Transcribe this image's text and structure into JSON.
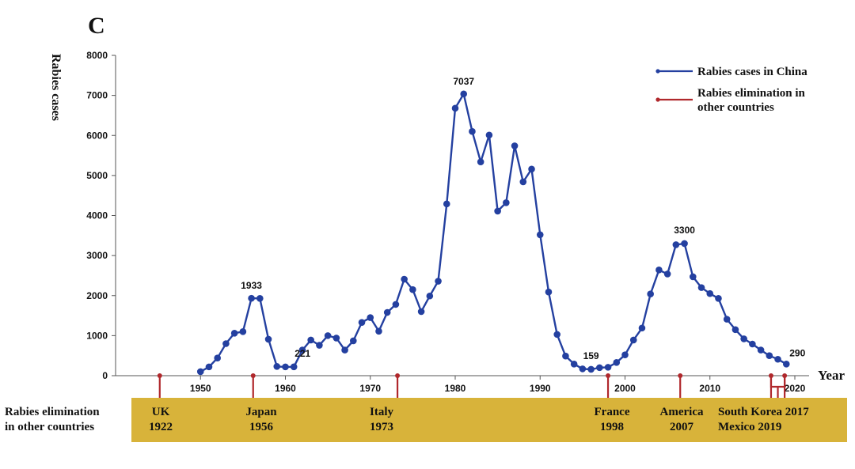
{
  "panel_label": "C",
  "colors": {
    "series": "#2440a0",
    "elimination": "#b0282c",
    "band": "#d8b33a"
  },
  "chart_data": {
    "type": "line",
    "title": "",
    "xlabel": "Year",
    "ylabel": "Rabies cases",
    "xlim": [
      1940,
      2020
    ],
    "ylim": [
      0,
      8000
    ],
    "x_ticks": [
      1950,
      1960,
      1970,
      1980,
      1990,
      2000,
      2010,
      2020
    ],
    "y_ticks": [
      0,
      1000,
      2000,
      3000,
      4000,
      5000,
      6000,
      7000,
      8000
    ],
    "legend": [
      "Rabies cases in China",
      "Rabies elimination in other countries"
    ],
    "series": [
      {
        "name": "Rabies cases in China",
        "x": [
          1950,
          1951,
          1952,
          1953,
          1954,
          1955,
          1956,
          1957,
          1958,
          1959,
          1960,
          1961,
          1962,
          1963,
          1964,
          1965,
          1966,
          1967,
          1968,
          1969,
          1970,
          1971,
          1972,
          1973,
          1974,
          1975,
          1976,
          1977,
          1978,
          1979,
          1980,
          1981,
          1982,
          1983,
          1984,
          1985,
          1986,
          1987,
          1988,
          1989,
          1990,
          1991,
          1992,
          1993,
          1994,
          1995,
          1996,
          1997,
          1998,
          1999,
          2000,
          2001,
          2002,
          2003,
          2004,
          2005,
          2006,
          2007,
          2008,
          2009,
          2010,
          2011,
          2012,
          2013,
          2014,
          2015,
          2016,
          2017,
          2018,
          2019
        ],
        "values": [
          100,
          220,
          440,
          800,
          1060,
          1100,
          1933,
          1930,
          910,
          230,
          220,
          221,
          640,
          890,
          760,
          1000,
          940,
          640,
          870,
          1330,
          1450,
          1110,
          1580,
          1780,
          2410,
          2150,
          1600,
          1990,
          2360,
          4290,
          6680,
          7037,
          6100,
          5340,
          6010,
          4110,
          4320,
          5740,
          4840,
          5160,
          3520,
          2090,
          1030,
          490,
          290,
          170,
          159,
          200,
          210,
          330,
          520,
          890,
          1190,
          2040,
          2640,
          2540,
          3270,
          3300,
          2470,
          2200,
          2050,
          1930,
          1410,
          1150,
          920,
          790,
          640,
          500,
          410,
          290
        ]
      }
    ],
    "data_labels": [
      {
        "x": 1956,
        "value": 1933,
        "text": "1933"
      },
      {
        "x": 1961,
        "value": 221,
        "text": "221"
      },
      {
        "x": 1981,
        "value": 7037,
        "text": "7037"
      },
      {
        "x": 1996,
        "value": 159,
        "text": "159"
      },
      {
        "x": 2007,
        "value": 3300,
        "text": "3300"
      },
      {
        "x": 2019,
        "value": 290,
        "text": "290"
      }
    ],
    "elimination_events": [
      {
        "country": "UK",
        "year": 1922,
        "marker_x": 1945.2
      },
      {
        "country": "Japan",
        "year": 1956,
        "marker_x": 1956.2
      },
      {
        "country": "Italy",
        "year": 1973,
        "marker_x": 1973.2
      },
      {
        "country": "France",
        "year": 1998,
        "marker_x": 1998
      },
      {
        "country": "America",
        "year": 2007,
        "marker_x": 2006.5
      },
      {
        "country": "South Korea",
        "year": 2017,
        "marker_x": 2017.2
      },
      {
        "country": "Mexico",
        "year": 2019,
        "marker_x": 2018.8
      }
    ]
  },
  "band": {
    "label_line1": "Rabies elimination",
    "label_line2": "in other countries",
    "entries": [
      {
        "line1": "UK",
        "line2": "1922"
      },
      {
        "line1": "Japan",
        "line2": "1956"
      },
      {
        "line1": "Italy",
        "line2": "1973"
      },
      {
        "line1": "France",
        "line2": "1998"
      },
      {
        "line1": "America",
        "line2": "2007"
      },
      {
        "line1": "South Korea 2017",
        "line2": "Mexico 2019"
      }
    ]
  }
}
